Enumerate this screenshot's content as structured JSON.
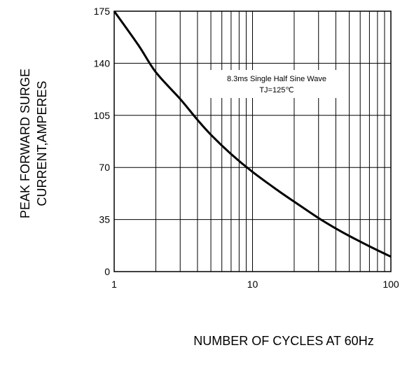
{
  "chart_data": {
    "type": "line",
    "title": "",
    "xlabel": "NUMBER  OF  CYCLES AT 60Hz",
    "ylabel_lines": [
      "PEAK FORWARD SURGE",
      "CURRENT,AMPERES"
    ],
    "x_scale": "log",
    "xlim": [
      1,
      100
    ],
    "ylim": [
      0,
      175
    ],
    "x_ticks": [
      1,
      10,
      100
    ],
    "x_tick_labels": [
      "1",
      "10",
      "100"
    ],
    "y_ticks": [
      0,
      35,
      70,
      105,
      140,
      175
    ],
    "y_tick_labels": [
      "0",
      "35",
      "70",
      "105",
      "140",
      "175"
    ],
    "grid": true,
    "annotation": {
      "line1": "8.3ms Single Half Sine Wave",
      "line2": "TJ=125℃"
    },
    "series": [
      {
        "x": [
          1,
          1.5,
          2,
          3,
          4,
          5,
          7,
          10,
          15,
          20,
          30,
          40,
          50,
          70,
          100
        ],
        "y": [
          175,
          152,
          134,
          116,
          102,
          92,
          79,
          67,
          55,
          47,
          36,
          29,
          24,
          17,
          10
        ]
      }
    ]
  }
}
